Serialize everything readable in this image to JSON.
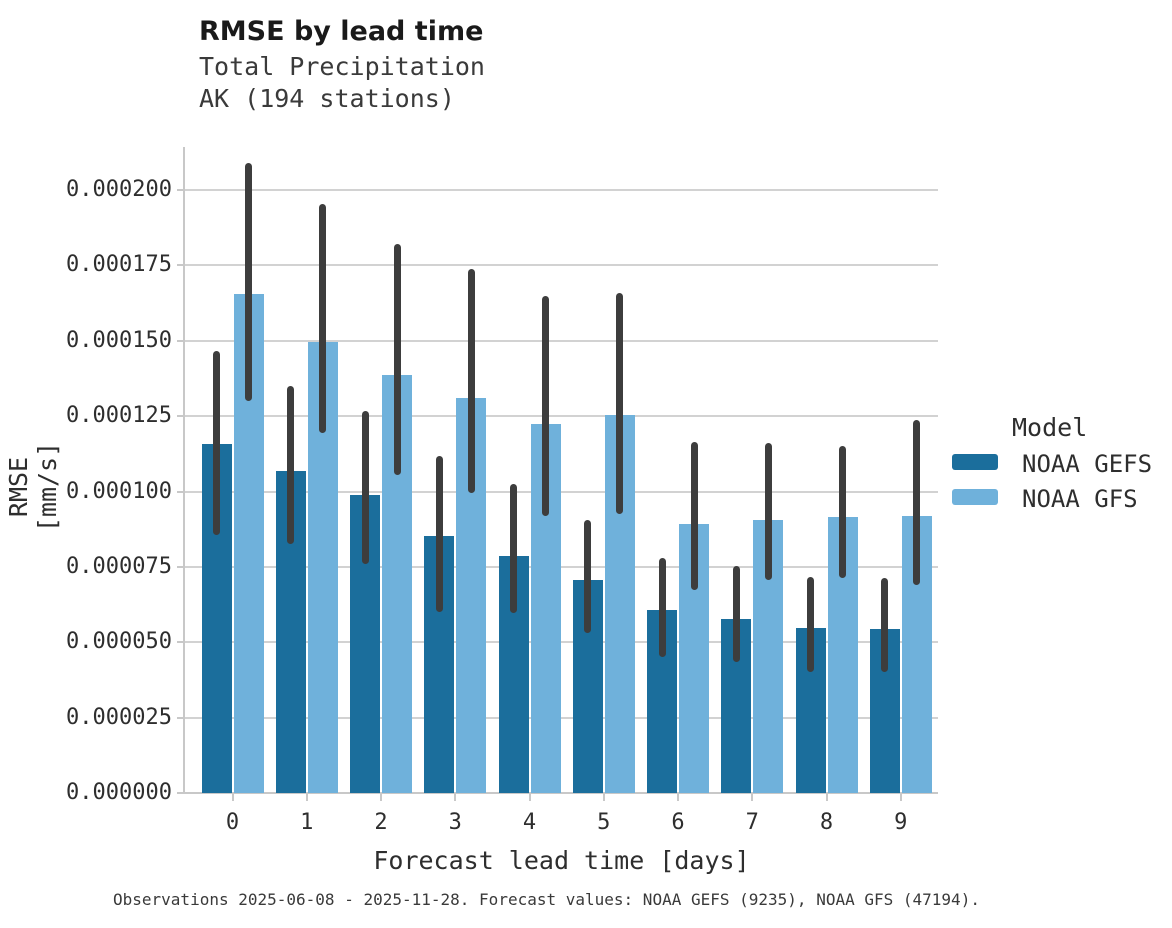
{
  "header": {
    "title": "RMSE by lead time",
    "subtitle_line1": "Total Precipitation",
    "subtitle_line2": "AK (194 stations)"
  },
  "chart_data": {
    "type": "bar",
    "title": "RMSE by lead time",
    "subtitle": [
      "Total Precipitation",
      "AK (194 stations)"
    ],
    "categories": [
      "0",
      "1",
      "2",
      "3",
      "4",
      "5",
      "6",
      "7",
      "8",
      "9"
    ],
    "xlabel": "Forecast lead time [days]",
    "ylabel": "RMSE [mm/s]",
    "ylim": [
      0,
      0.0002143
    ],
    "yticks": [
      0.0,
      2.5e-05,
      5e-05,
      7.5e-05,
      0.0001,
      0.000125,
      0.00015,
      0.000175,
      0.0002
    ],
    "ytick_labels": [
      "0.000000",
      "0.000025",
      "0.000050",
      "0.000075",
      "0.000100",
      "0.000125",
      "0.000150",
      "0.000175",
      "0.000200"
    ],
    "grid": "horizontal",
    "legend_title": "Model",
    "legend_position": "right",
    "series": [
      {
        "name": "NOAA GEFS",
        "color": "#1B6E9C",
        "values": [
          0.0001158,
          0.0001068,
          9.88e-05,
          8.53e-05,
          7.86e-05,
          7.06e-05,
          6.06e-05,
          5.78e-05,
          5.49e-05,
          5.43e-05
        ],
        "error_low": [
          8.55e-05,
          8.25e-05,
          7.6e-05,
          6.01e-05,
          5.97e-05,
          5.32e-05,
          4.51e-05,
          4.33e-05,
          4e-05,
          4.03e-05
        ],
        "error_high": [
          0.0001465,
          0.000135,
          0.0001268,
          0.0001117,
          0.0001025,
          9.05e-05,
          7.8e-05,
          7.52e-05,
          7.18e-05,
          7.14e-05
        ]
      },
      {
        "name": "NOAA GFS",
        "color": "#6FB1DB",
        "values": [
          0.0001657,
          0.0001497,
          0.0001388,
          0.000131,
          0.0001225,
          0.0001255,
          8.93e-05,
          9.07e-05,
          9.16e-05,
          9.18e-05
        ],
        "error_low": [
          0.00013,
          0.0001195,
          0.0001056,
          9.95e-05,
          9.18e-05,
          9.27e-05,
          6.75e-05,
          7.07e-05,
          7.12e-05,
          6.9e-05
        ],
        "error_high": [
          0.000209,
          0.0001955,
          0.000182,
          0.0001737,
          0.0001648,
          0.000166,
          0.0001163,
          0.000116,
          0.0001152,
          0.0001238
        ]
      }
    ]
  },
  "caption": "Observations 2025-06-08 - 2025-11-28. Forecast values: NOAA GEFS (9235), NOAA GFS (47194).",
  "colors": {
    "grid": "#d2d2d2",
    "spine": "#c8c8c8",
    "error_bar": "#3d3d3d",
    "title_text": "#1a1a1a",
    "text": "#2e2e2e"
  }
}
